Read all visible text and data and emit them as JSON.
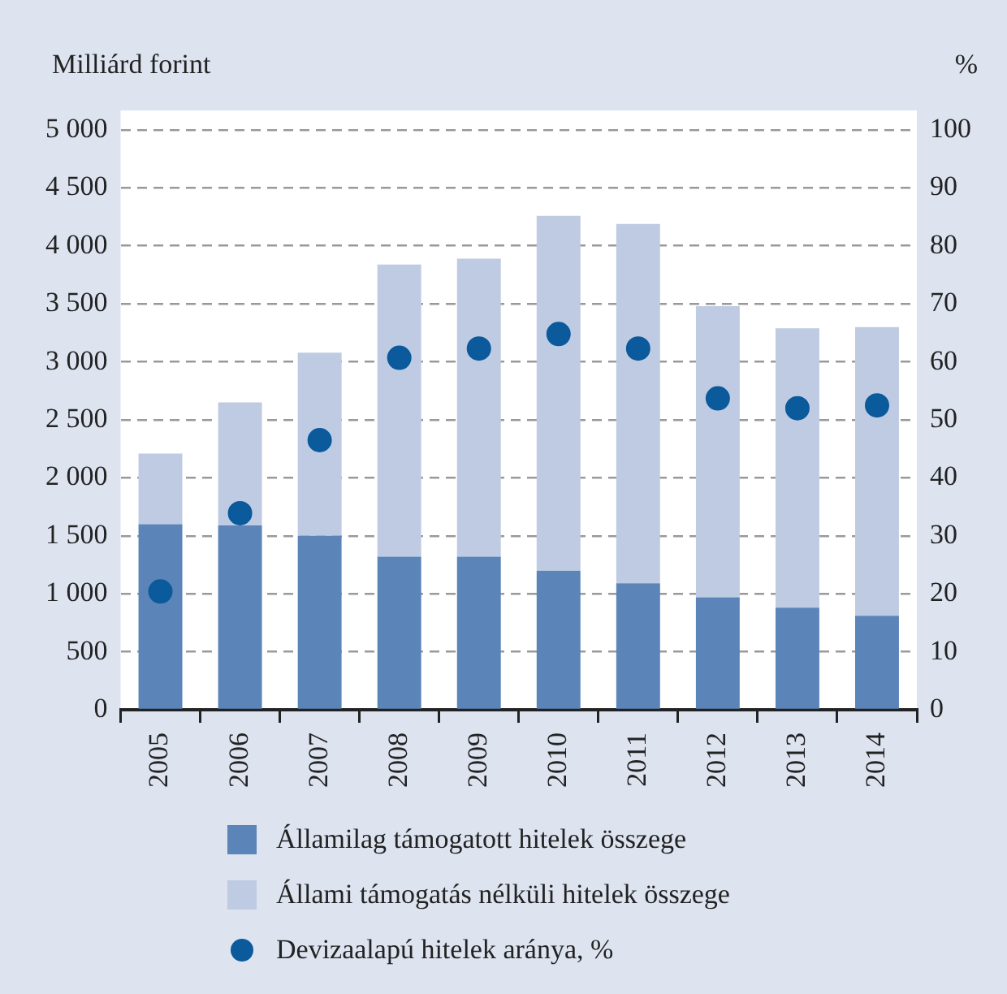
{
  "chart_data": {
    "type": "bar",
    "stacked": true,
    "ylabel": "Milliárd forint",
    "y2label": "%",
    "categories": [
      "2005",
      "2006",
      "2007",
      "2008",
      "2009",
      "2010",
      "2011",
      "2012",
      "2013",
      "2014"
    ],
    "series": [
      {
        "name": "Államilag támogatott hitelek összege",
        "color": "#5b84b8",
        "values": [
          1600,
          1590,
          1500,
          1320,
          1320,
          1200,
          1090,
          970,
          880,
          810
        ]
      },
      {
        "name": "Állami támogatás nélküli hitelek összege",
        "color": "#bfcbe2",
        "values": [
          610,
          1060,
          1580,
          2520,
          2570,
          3060,
          3100,
          2510,
          2410,
          2490
        ]
      },
      {
        "name": "Devizaalapú hitelek aránya, %",
        "type": "scatter",
        "axis": "y2",
        "marker": "circle",
        "color": "#0a5a9c",
        "values": [
          20.4,
          33.9,
          46.5,
          60.7,
          62.3,
          64.8,
          62.3,
          53.7,
          52,
          52.5
        ]
      }
    ],
    "ylim": [
      0,
      5000
    ],
    "yticks": [
      {
        "value": 0,
        "label": "0"
      },
      {
        "value": 500,
        "label": "500"
      },
      {
        "value": 1000,
        "label": "1 000"
      },
      {
        "value": 1500,
        "label": "1 500"
      },
      {
        "value": 2000,
        "label": "2 000"
      },
      {
        "value": 2500,
        "label": "2 500"
      },
      {
        "value": 3000,
        "label": "3 000"
      },
      {
        "value": 3500,
        "label": "3 500"
      },
      {
        "value": 4000,
        "label": "4 000"
      },
      {
        "value": 4500,
        "label": "4 500"
      },
      {
        "value": 5000,
        "label": "5 000"
      }
    ],
    "y2lim": [
      0,
      100
    ],
    "y2ticks": [
      0,
      10,
      20,
      30,
      40,
      50,
      60,
      70,
      80,
      90,
      100
    ],
    "grid": "y",
    "legend": "bottom"
  }
}
